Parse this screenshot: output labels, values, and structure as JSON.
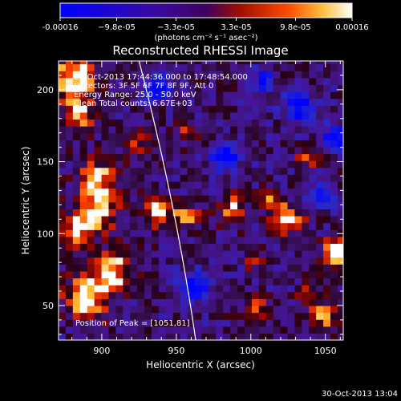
{
  "chart_data": {
    "type": "heatmap",
    "title": "Reconstructed RHESSI Image",
    "xlabel": "Heliocentric X (arcsec)",
    "ylabel": "Heliocentric Y (arcsec)",
    "xlim": [
      871,
      1062
    ],
    "ylim": [
      26,
      220
    ],
    "x_ticks": [
      900,
      950,
      1000,
      1050
    ],
    "y_ticks": [
      50,
      100,
      150,
      200
    ],
    "colorbar": {
      "min": -0.00016,
      "max": 0.00016,
      "ticks": [
        -0.00016,
        -9.8e-05,
        -3.3e-05,
        3.3e-05,
        9.8e-05,
        0.00016
      ],
      "tick_labels": [
        "-0.00016",
        "−9.8e-05",
        "−3.3e-05",
        "3.3e-05",
        "9.8e-05",
        "0.00016"
      ],
      "unit_label": "(photons cm⁻² s⁻¹ asec⁻²)"
    },
    "annotations": [
      "29-Oct-2013 17:44:36.000 to 17:48:54.000",
      "Detectors: 3F 5F 6F 7F 8F 9F, Att 0",
      "Energy Range: 25.0 - 50.0 keV",
      "Clean    Total counts: 6.67E+03"
    ],
    "peak_label": "Position of Peak = [1051,81]",
    "limb": [
      [
        963,
        26
      ],
      [
        950,
        120
      ],
      [
        925,
        220
      ]
    ],
    "blobs": [
      {
        "x": 880,
        "y": 205,
        "r": 14,
        "a": 1.3
      },
      {
        "x": 882,
        "y": 180,
        "r": 10,
        "a": 0.9
      },
      {
        "x": 895,
        "y": 135,
        "r": 13,
        "a": 1.0
      },
      {
        "x": 893,
        "y": 112,
        "r": 14,
        "a": 1.1
      },
      {
        "x": 880,
        "y": 98,
        "r": 10,
        "a": 0.9
      },
      {
        "x": 905,
        "y": 72,
        "r": 12,
        "a": 1.1
      },
      {
        "x": 888,
        "y": 55,
        "r": 14,
        "a": 1.3
      },
      {
        "x": 935,
        "y": 115,
        "r": 10,
        "a": 1.2
      },
      {
        "x": 955,
        "y": 110,
        "r": 8,
        "a": 0.9
      },
      {
        "x": 920,
        "y": 160,
        "r": 8,
        "a": 0.7
      },
      {
        "x": 985,
        "y": 115,
        "r": 9,
        "a": 0.9
      },
      {
        "x": 1022,
        "y": 108,
        "r": 10,
        "a": 1.2
      },
      {
        "x": 1010,
        "y": 122,
        "r": 7,
        "a": 0.7
      },
      {
        "x": 1000,
        "y": 45,
        "r": 8,
        "a": 0.8
      },
      {
        "x": 1045,
        "y": 40,
        "r": 9,
        "a": 0.9
      },
      {
        "x": 1038,
        "y": 55,
        "r": 7,
        "a": 0.7
      },
      {
        "x": 1055,
        "y": 84,
        "r": 9,
        "a": 1.5
      },
      {
        "x": 1035,
        "y": 150,
        "r": 7,
        "a": 0.6
      },
      {
        "x": 1000,
        "y": 80,
        "r": 6,
        "a": 0.6
      },
      {
        "x": 955,
        "y": 170,
        "r": 7,
        "a": 0.6
      },
      {
        "x": 935,
        "y": 200,
        "r": 9,
        "a": -1.0
      },
      {
        "x": 960,
        "y": 60,
        "r": 10,
        "a": -1.0
      },
      {
        "x": 980,
        "y": 150,
        "r": 9,
        "a": -1.0
      },
      {
        "x": 1030,
        "y": 185,
        "r": 10,
        "a": -1.1
      },
      {
        "x": 1005,
        "y": 205,
        "r": 8,
        "a": -0.9
      },
      {
        "x": 1045,
        "y": 125,
        "r": 8,
        "a": -0.9
      },
      {
        "x": 1055,
        "y": 165,
        "r": 9,
        "a": -1.0
      }
    ]
  },
  "timestamp": "30-Oct-2013 13:04"
}
